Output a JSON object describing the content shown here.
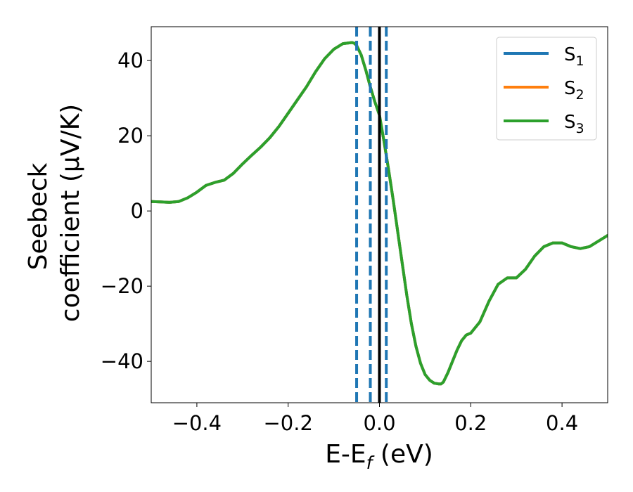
{
  "chart_data": {
    "type": "line",
    "title": "",
    "xlabel_main": "E-E",
    "xlabel_sub": "f",
    "xlabel_tail": " (eV)",
    "ylabel_line1": "Seebeck",
    "ylabel_line2": "coefficient  (μV/K)",
    "xlim": [
      -0.5,
      0.5
    ],
    "ylim": [
      -51,
      49
    ],
    "xticks": [
      -0.4,
      -0.2,
      0.0,
      0.2,
      0.4
    ],
    "xtick_labels": [
      "−0.4",
      "−0.2",
      "0.0",
      "0.2",
      "0.4"
    ],
    "yticks": [
      -40,
      -20,
      0,
      20,
      40
    ],
    "ytick_labels": [
      "−40",
      "−20",
      "0",
      "20",
      "40"
    ],
    "grid": false,
    "legend_position": "top-right",
    "series": [
      {
        "name": "S",
        "subscript": "1",
        "color": "#1f77b4",
        "x": [
          -0.5,
          -0.48,
          -0.46,
          -0.44,
          -0.42,
          -0.4,
          -0.38,
          -0.36,
          -0.34,
          -0.32,
          -0.3,
          -0.28,
          -0.26,
          -0.24,
          -0.22,
          -0.2,
          -0.18,
          -0.16,
          -0.14,
          -0.12,
          -0.1,
          -0.08,
          -0.06,
          -0.055,
          -0.05,
          -0.04,
          -0.03,
          -0.02,
          -0.01,
          0.0,
          0.01,
          0.02,
          0.03,
          0.04,
          0.05,
          0.06,
          0.07,
          0.08,
          0.09,
          0.1,
          0.11,
          0.12,
          0.13,
          0.135,
          0.14,
          0.15,
          0.16,
          0.17,
          0.18,
          0.19,
          0.2,
          0.22,
          0.24,
          0.26,
          0.28,
          0.3,
          0.32,
          0.34,
          0.36,
          0.38,
          0.4,
          0.42,
          0.44,
          0.46,
          0.48,
          0.5
        ],
        "y": [
          2.5,
          2.4,
          2.3,
          2.5,
          3.5,
          5.0,
          6.8,
          7.6,
          8.2,
          10.0,
          12.5,
          14.8,
          17.0,
          19.5,
          22.5,
          26.0,
          29.5,
          33.0,
          37.0,
          40.5,
          43.0,
          44.5,
          44.8,
          44.6,
          44.0,
          41.5,
          37.5,
          33.0,
          29.0,
          25.5,
          18.5,
          11.0,
          3.0,
          -5.5,
          -14.0,
          -22.5,
          -30.0,
          -36.0,
          -40.5,
          -43.5,
          -45.0,
          -45.8,
          -46.0,
          -46.0,
          -45.5,
          -43.0,
          -40.0,
          -37.0,
          -34.5,
          -33.0,
          -32.5,
          -29.5,
          -24.0,
          -19.5,
          -17.8,
          -17.8,
          -15.5,
          -12.0,
          -9.5,
          -8.5,
          -8.5,
          -9.5,
          -10.0,
          -9.5,
          -8.0,
          -6.5
        ]
      },
      {
        "name": "S",
        "subscript": "2",
        "color": "#ff7f0e",
        "x": [
          -0.5,
          -0.48,
          -0.46,
          -0.44,
          -0.42,
          -0.4,
          -0.38,
          -0.36,
          -0.34,
          -0.32,
          -0.3,
          -0.28,
          -0.26,
          -0.24,
          -0.22,
          -0.2,
          -0.18,
          -0.16,
          -0.14,
          -0.12,
          -0.1,
          -0.08,
          -0.06,
          -0.055,
          -0.05,
          -0.04,
          -0.03,
          -0.02,
          -0.01,
          0.0,
          0.01,
          0.02,
          0.03,
          0.04,
          0.05,
          0.06,
          0.07,
          0.08,
          0.09,
          0.1,
          0.11,
          0.12,
          0.13,
          0.135,
          0.14,
          0.15,
          0.16,
          0.17,
          0.18,
          0.19,
          0.2,
          0.22,
          0.24,
          0.26,
          0.28,
          0.3,
          0.32,
          0.34,
          0.36,
          0.38,
          0.4,
          0.42,
          0.44,
          0.46,
          0.48,
          0.5
        ],
        "y": [
          2.5,
          2.4,
          2.3,
          2.5,
          3.5,
          5.0,
          6.8,
          7.6,
          8.2,
          10.0,
          12.5,
          14.8,
          17.0,
          19.5,
          22.5,
          26.0,
          29.5,
          33.0,
          37.0,
          40.5,
          43.0,
          44.5,
          44.8,
          44.6,
          44.0,
          41.5,
          37.5,
          33.0,
          29.0,
          25.5,
          18.5,
          11.0,
          3.0,
          -5.5,
          -14.0,
          -22.5,
          -30.0,
          -36.0,
          -40.5,
          -43.5,
          -45.0,
          -45.8,
          -46.0,
          -46.0,
          -45.5,
          -43.0,
          -40.0,
          -37.0,
          -34.5,
          -33.0,
          -32.5,
          -29.5,
          -24.0,
          -19.5,
          -17.8,
          -17.8,
          -15.5,
          -12.0,
          -9.5,
          -8.5,
          -8.5,
          -9.5,
          -10.0,
          -9.5,
          -8.0,
          -6.5
        ]
      },
      {
        "name": "S",
        "subscript": "3",
        "color": "#2ca02c",
        "x": [
          -0.5,
          -0.48,
          -0.46,
          -0.44,
          -0.42,
          -0.4,
          -0.38,
          -0.36,
          -0.34,
          -0.32,
          -0.3,
          -0.28,
          -0.26,
          -0.24,
          -0.22,
          -0.2,
          -0.18,
          -0.16,
          -0.14,
          -0.12,
          -0.1,
          -0.08,
          -0.06,
          -0.055,
          -0.05,
          -0.04,
          -0.03,
          -0.02,
          -0.01,
          0.0,
          0.01,
          0.02,
          0.03,
          0.04,
          0.05,
          0.06,
          0.07,
          0.08,
          0.09,
          0.1,
          0.11,
          0.12,
          0.13,
          0.135,
          0.14,
          0.15,
          0.16,
          0.17,
          0.18,
          0.19,
          0.2,
          0.22,
          0.24,
          0.26,
          0.28,
          0.3,
          0.32,
          0.34,
          0.36,
          0.38,
          0.4,
          0.42,
          0.44,
          0.46,
          0.48,
          0.5
        ],
        "y": [
          2.5,
          2.4,
          2.3,
          2.5,
          3.5,
          5.0,
          6.8,
          7.6,
          8.2,
          10.0,
          12.5,
          14.8,
          17.0,
          19.5,
          22.5,
          26.0,
          29.5,
          33.0,
          37.0,
          40.5,
          43.0,
          44.5,
          44.8,
          44.6,
          44.0,
          41.5,
          37.5,
          33.0,
          29.0,
          25.5,
          18.5,
          11.0,
          3.0,
          -5.5,
          -14.0,
          -22.5,
          -30.0,
          -36.0,
          -40.5,
          -43.5,
          -45.0,
          -45.8,
          -46.0,
          -46.0,
          -45.5,
          -43.0,
          -40.0,
          -37.0,
          -34.5,
          -33.0,
          -32.5,
          -29.5,
          -24.0,
          -19.5,
          -17.8,
          -17.8,
          -15.5,
          -12.0,
          -9.5,
          -8.5,
          -8.5,
          -9.5,
          -10.0,
          -9.5,
          -8.0,
          -6.5
        ]
      }
    ],
    "vertical_lines": [
      {
        "x": 0.0,
        "color": "#000000",
        "style": "solid"
      },
      {
        "x": -0.05,
        "color": "#1f77b4",
        "style": "dashed"
      },
      {
        "x": -0.02,
        "color": "#1f77b4",
        "style": "dashed"
      },
      {
        "x": 0.015,
        "color": "#1f77b4",
        "style": "dashed"
      }
    ]
  }
}
